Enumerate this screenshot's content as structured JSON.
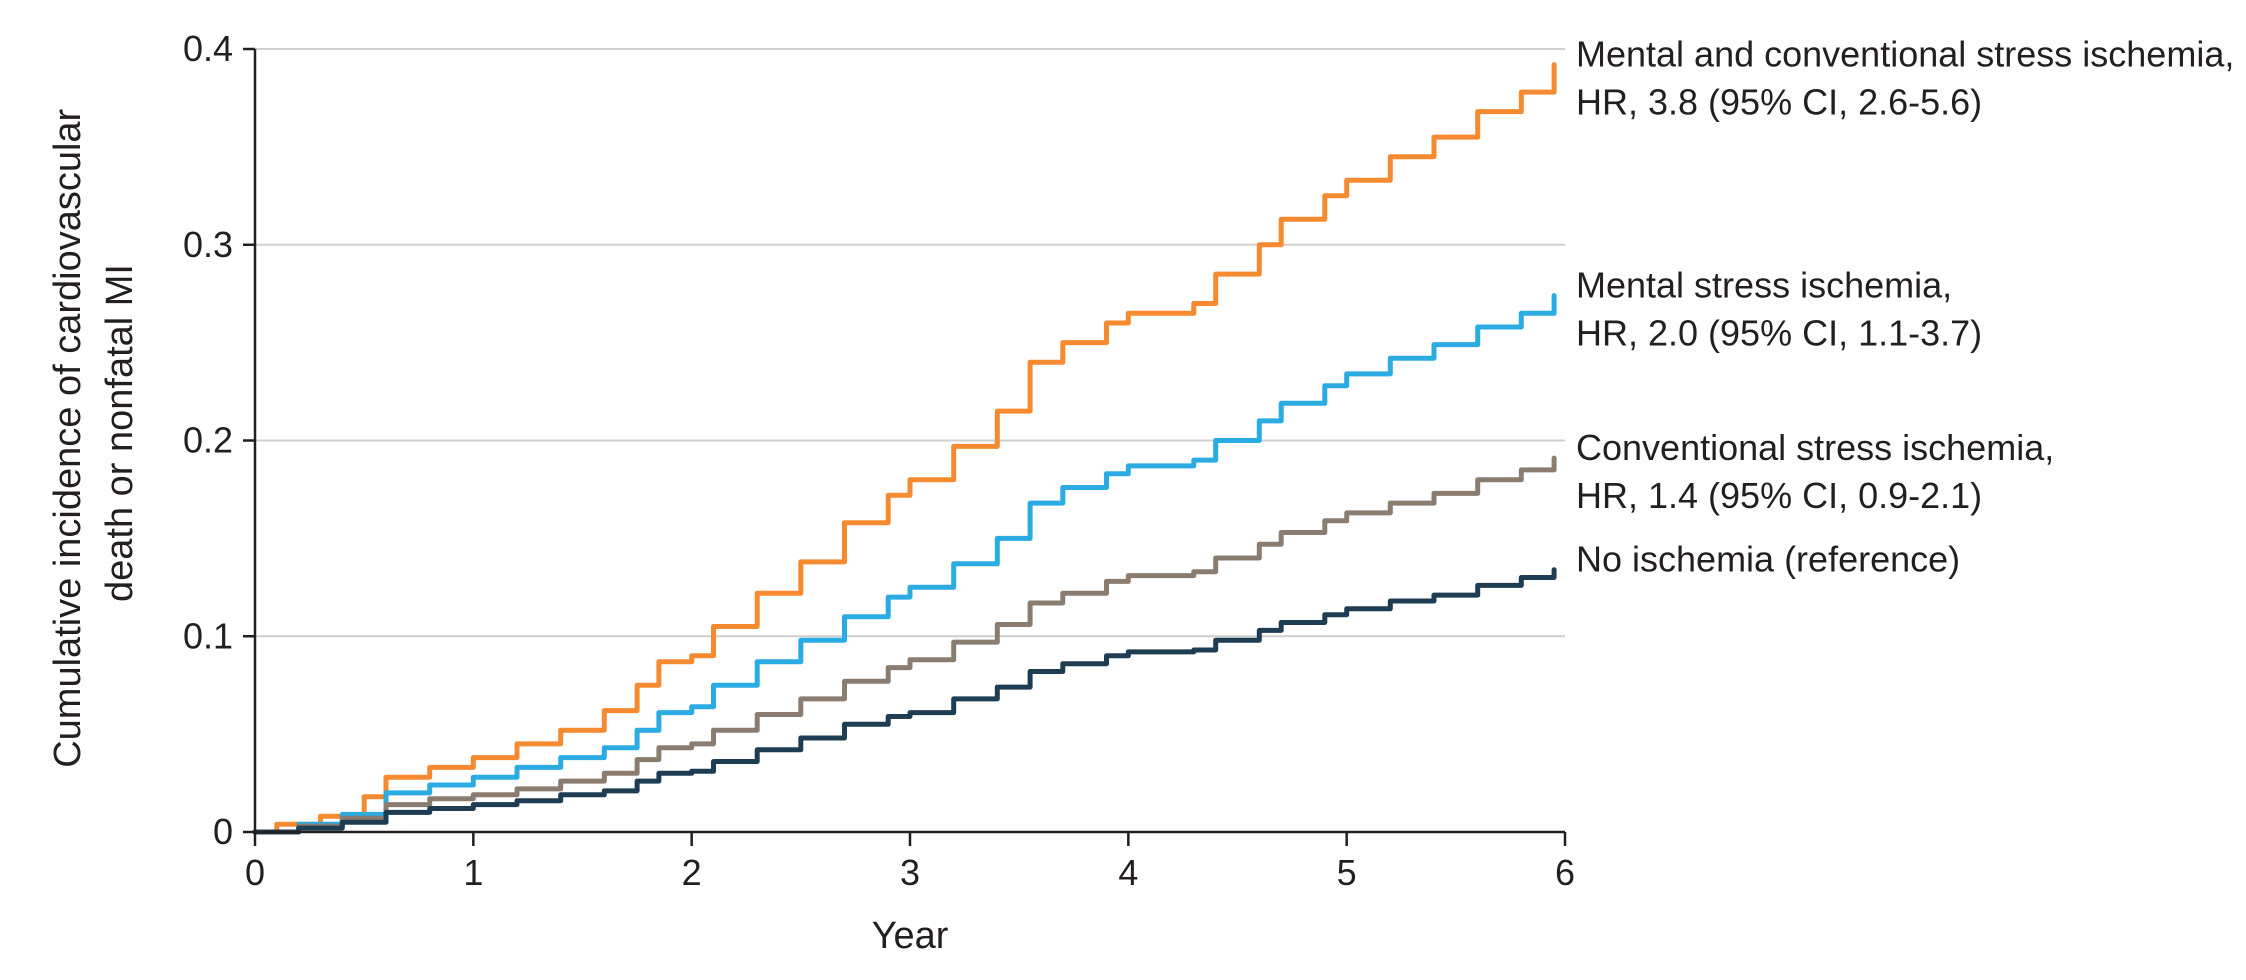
{
  "chart_data": {
    "type": "line",
    "xlabel": "Year",
    "ylabel": [
      "Cumulative incidence of cardiovascular",
      "death or nonfatal MI"
    ],
    "xlim": [
      0,
      6
    ],
    "ylim": [
      0,
      0.4
    ],
    "x_ticks": [
      0,
      1,
      2,
      3,
      4,
      5,
      6
    ],
    "x_tick_labels": [
      "0",
      "1",
      "2",
      "3",
      "4",
      "5",
      "6"
    ],
    "y_ticks": [
      0,
      0.1,
      0.2,
      0.3,
      0.4
    ],
    "y_tick_labels": [
      "0",
      "0.1",
      "0.2",
      "0.3",
      "0.4"
    ],
    "grid": "horizontal",
    "legend": "right, labels next to line ends",
    "series": [
      {
        "name": "Mental and conventional stress ischemia, HR, 3.8 (95% CI, 2.6-5.6)",
        "label_lines": [
          "Mental and conventional stress ischemia,",
          "HR, 3.8 (95% CI, 2.6-5.6)"
        ],
        "color": "#f58a31",
        "x": [
          0,
          0.1,
          0.3,
          0.5,
          0.6,
          0.8,
          1.0,
          1.2,
          1.4,
          1.6,
          1.75,
          1.85,
          2.0,
          2.1,
          2.3,
          2.5,
          2.7,
          2.9,
          3.0,
          3.2,
          3.4,
          3.55,
          3.7,
          3.9,
          4.0,
          4.3,
          4.4,
          4.6,
          4.7,
          4.9,
          5.0,
          5.2,
          5.4,
          5.6,
          5.8,
          5.95
        ],
        "y": [
          0,
          0.004,
          0.008,
          0.018,
          0.028,
          0.033,
          0.038,
          0.045,
          0.052,
          0.062,
          0.075,
          0.087,
          0.09,
          0.105,
          0.122,
          0.138,
          0.158,
          0.172,
          0.18,
          0.197,
          0.215,
          0.24,
          0.25,
          0.26,
          0.265,
          0.27,
          0.285,
          0.3,
          0.313,
          0.325,
          0.333,
          0.345,
          0.355,
          0.368,
          0.378,
          0.392
        ]
      },
      {
        "name": "Mental stress ischemia, HR, 2.0 (95% CI, 1.1-3.7)",
        "label_lines": [
          "Mental stress ischemia,",
          "HR, 2.0 (95% CI, 1.1-3.7)"
        ],
        "color": "#2aabe2",
        "x": [
          0,
          0.2,
          0.4,
          0.6,
          0.8,
          1.0,
          1.2,
          1.4,
          1.6,
          1.75,
          1.85,
          2.0,
          2.1,
          2.3,
          2.5,
          2.7,
          2.9,
          3.0,
          3.2,
          3.4,
          3.55,
          3.7,
          3.9,
          4.0,
          4.3,
          4.4,
          4.6,
          4.7,
          4.9,
          5.0,
          5.2,
          5.4,
          5.6,
          5.8,
          5.95
        ],
        "y": [
          0,
          0.004,
          0.009,
          0.02,
          0.024,
          0.028,
          0.033,
          0.038,
          0.043,
          0.052,
          0.061,
          0.064,
          0.075,
          0.087,
          0.098,
          0.11,
          0.12,
          0.125,
          0.137,
          0.15,
          0.168,
          0.176,
          0.183,
          0.187,
          0.19,
          0.2,
          0.21,
          0.219,
          0.228,
          0.234,
          0.242,
          0.249,
          0.258,
          0.265,
          0.274
        ]
      },
      {
        "name": "Conventional stress ischemia, HR, 1.4 (95% CI, 0.9-2.1)",
        "label_lines": [
          "Conventional stress ischemia,",
          "HR, 1.4 (95% CI, 0.9-2.1)"
        ],
        "color": "#8a7d70",
        "x": [
          0,
          0.2,
          0.4,
          0.6,
          0.8,
          1.0,
          1.2,
          1.4,
          1.6,
          1.75,
          1.85,
          2.0,
          2.1,
          2.3,
          2.5,
          2.7,
          2.9,
          3.0,
          3.2,
          3.4,
          3.55,
          3.7,
          3.9,
          4.0,
          4.3,
          4.4,
          4.6,
          4.7,
          4.9,
          5.0,
          5.2,
          5.4,
          5.6,
          5.8,
          5.95
        ],
        "y": [
          0,
          0.003,
          0.007,
          0.014,
          0.017,
          0.019,
          0.022,
          0.026,
          0.03,
          0.037,
          0.043,
          0.045,
          0.052,
          0.06,
          0.068,
          0.077,
          0.084,
          0.088,
          0.097,
          0.106,
          0.117,
          0.122,
          0.128,
          0.131,
          0.133,
          0.14,
          0.147,
          0.153,
          0.159,
          0.163,
          0.168,
          0.173,
          0.18,
          0.185,
          0.191
        ]
      },
      {
        "name": "No ischemia (reference)",
        "label_lines": [
          "No ischemia (reference)"
        ],
        "color": "#1e3d52",
        "x": [
          0,
          0.2,
          0.4,
          0.6,
          0.8,
          1.0,
          1.2,
          1.4,
          1.6,
          1.75,
          1.85,
          2.0,
          2.1,
          2.3,
          2.5,
          2.7,
          2.9,
          3.0,
          3.2,
          3.4,
          3.55,
          3.7,
          3.9,
          4.0,
          4.3,
          4.4,
          4.6,
          4.7,
          4.9,
          5.0,
          5.2,
          5.4,
          5.6,
          5.8,
          5.95
        ],
        "y": [
          0,
          0.002,
          0.005,
          0.01,
          0.012,
          0.014,
          0.016,
          0.019,
          0.021,
          0.026,
          0.03,
          0.031,
          0.036,
          0.042,
          0.048,
          0.055,
          0.059,
          0.061,
          0.068,
          0.074,
          0.082,
          0.086,
          0.09,
          0.092,
          0.093,
          0.098,
          0.103,
          0.107,
          0.111,
          0.114,
          0.118,
          0.121,
          0.126,
          0.13,
          0.134
        ]
      }
    ]
  },
  "colors": {
    "axis": "#231f20",
    "grid": "#cfcfcf",
    "text": "#231f20"
  }
}
